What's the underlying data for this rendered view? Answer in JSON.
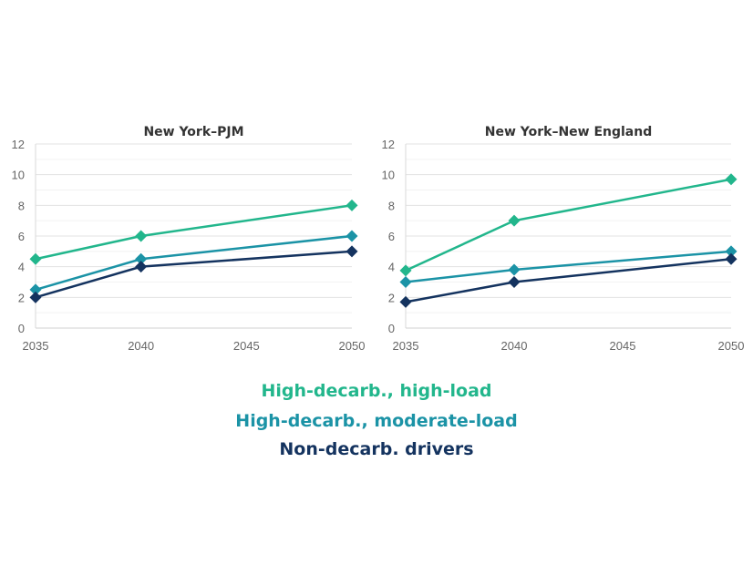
{
  "chart_data": [
    {
      "type": "line",
      "title": "New York–PJM",
      "x": [
        2035,
        2040,
        2050
      ],
      "xticks": [
        "2035",
        "2040",
        "2045",
        "2050"
      ],
      "xlim": [
        2035,
        2050
      ],
      "ylim": [
        0,
        12
      ],
      "yticks": [
        "0",
        "2",
        "4",
        "6",
        "8",
        "10",
        "12"
      ],
      "grid": true,
      "series": [
        {
          "name": "High-decarb., high-load",
          "color": "#22b68c",
          "values": [
            4.5,
            6,
            8
          ]
        },
        {
          "name": "High-decarb., moderate-load",
          "color": "#1b93a6",
          "values": [
            2.5,
            4.5,
            6
          ]
        },
        {
          "name": "Non-decarb. drivers",
          "color": "#14335f",
          "values": [
            2,
            4,
            5
          ]
        }
      ]
    },
    {
      "type": "line",
      "title": "New York–New England",
      "x": [
        2035,
        2040,
        2050
      ],
      "xticks": [
        "2035",
        "2040",
        "2045",
        "2050"
      ],
      "xlim": [
        2035,
        2050
      ],
      "ylim": [
        0,
        12
      ],
      "yticks": [
        "0",
        "2",
        "4",
        "6",
        "8",
        "10",
        "12"
      ],
      "grid": true,
      "series": [
        {
          "name": "High-decarb., high-load",
          "color": "#22b68c",
          "values": [
            3.75,
            7,
            9.7
          ]
        },
        {
          "name": "High-decarb., moderate-load",
          "color": "#1b93a6",
          "values": [
            3,
            3.8,
            5
          ]
        },
        {
          "name": "Non-decarb. drivers",
          "color": "#14335f",
          "values": [
            1.7,
            3,
            4.5
          ]
        }
      ]
    }
  ],
  "legend": [
    {
      "label": "High-decarb., high-load",
      "color": "#22b68c"
    },
    {
      "label": "High-decarb., moderate-load",
      "color": "#1b93a6"
    },
    {
      "label": "Non-decarb. drivers",
      "color": "#14335f"
    }
  ]
}
